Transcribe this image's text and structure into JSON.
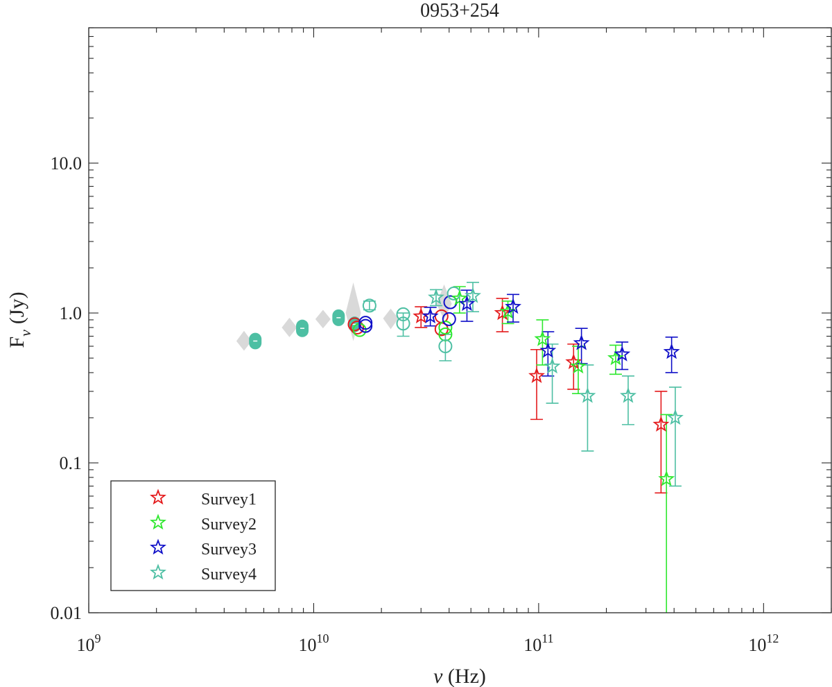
{
  "chart_data": {
    "type": "scatter",
    "title": "0953+254",
    "xlabel_sym": "ν",
    "xlabel_unit": "(Hz)",
    "ylabel_main": "F",
    "ylabel_sub": "ν",
    "ylabel_unit": "(Jy)",
    "xscale": "log",
    "yscale": "log",
    "xlim": [
      1000000000.0,
      2000000000000.0
    ],
    "ylim": [
      0.01,
      80
    ],
    "x_ticks": [
      {
        "value": 1000000000.0,
        "base": "10",
        "exp": "9"
      },
      {
        "value": 10000000000.0,
        "base": "10",
        "exp": "10"
      },
      {
        "value": 100000000000.0,
        "base": "10",
        "exp": "11"
      },
      {
        "value": 1000000000000.0,
        "base": "10",
        "exp": "12"
      }
    ],
    "y_ticks": [
      {
        "value": 0.01,
        "label": "0.01"
      },
      {
        "value": 0.1,
        "label": "0.1"
      },
      {
        "value": 1,
        "label": "1.0"
      },
      {
        "value": 10,
        "label": "10.0"
      }
    ],
    "legend_position": "bottom-left",
    "colors": {
      "Survey1": "#e41a1c",
      "Survey2": "#2ee82e",
      "Survey3": "#1010c8",
      "Survey4": "#4dbfa3",
      "grey": "#d9d9d9",
      "teal_fill": "#4dbfa3"
    },
    "series": [
      {
        "name": "Survey1",
        "marker": "star",
        "points": [
          {
            "x": 30000000000.0,
            "y": 0.95,
            "lo": 0.8,
            "hi": 1.1
          },
          {
            "x": 69000000000.0,
            "y": 1.0,
            "lo": 0.75,
            "hi": 1.25
          },
          {
            "x": 98000000000.0,
            "y": 0.38,
            "lo": 0.195,
            "hi": 0.57
          },
          {
            "x": 143000000000.0,
            "y": 0.47,
            "lo": 0.31,
            "hi": 0.62
          },
          {
            "x": 350000000000.0,
            "y": 0.18,
            "lo": 0.063,
            "hi": 0.3
          }
        ]
      },
      {
        "name": "Survey2",
        "marker": "star",
        "points": [
          {
            "x": 44500000000.0,
            "y": 1.25,
            "lo": 1.0,
            "hi": 1.5
          },
          {
            "x": 73000000000.0,
            "y": 1.02,
            "lo": 0.85,
            "hi": 1.2
          },
          {
            "x": 104000000000.0,
            "y": 0.67,
            "lo": 0.45,
            "hi": 0.9
          },
          {
            "x": 150000000000.0,
            "y": 0.44,
            "lo": 0.29,
            "hi": 0.6
          },
          {
            "x": 220000000000.0,
            "y": 0.5,
            "lo": 0.39,
            "hi": 0.61
          },
          {
            "x": 370000000000.0,
            "y": 0.078,
            "lo": 0.008,
            "hi": 0.21
          }
        ]
      },
      {
        "name": "Survey3",
        "marker": "star",
        "points": [
          {
            "x": 33000000000.0,
            "y": 0.95,
            "lo": 0.82,
            "hi": 1.09
          },
          {
            "x": 48000000000.0,
            "y": 1.15,
            "lo": 0.88,
            "hi": 1.42
          },
          {
            "x": 77000000000.0,
            "y": 1.1,
            "lo": 0.87,
            "hi": 1.33
          },
          {
            "x": 110000000000.0,
            "y": 0.56,
            "lo": 0.38,
            "hi": 0.75
          },
          {
            "x": 155000000000.0,
            "y": 0.63,
            "lo": 0.46,
            "hi": 0.79
          },
          {
            "x": 235000000000.0,
            "y": 0.53,
            "lo": 0.42,
            "hi": 0.64
          },
          {
            "x": 390000000000.0,
            "y": 0.55,
            "lo": 0.4,
            "hi": 0.69
          }
        ]
      },
      {
        "name": "Survey4",
        "marker": "star",
        "points": [
          {
            "x": 35000000000.0,
            "y": 1.27,
            "lo": 1.12,
            "hi": 1.43
          },
          {
            "x": 51000000000.0,
            "y": 1.3,
            "lo": 1.02,
            "hi": 1.6
          },
          {
            "x": 115000000000.0,
            "y": 0.44,
            "lo": 0.25,
            "hi": 0.62
          },
          {
            "x": 165000000000.0,
            "y": 0.28,
            "lo": 0.12,
            "hi": 0.45
          },
          {
            "x": 250000000000.0,
            "y": 0.28,
            "lo": 0.18,
            "hi": 0.38
          },
          {
            "x": 405000000000.0,
            "y": 0.2,
            "lo": 0.07,
            "hi": 0.32
          }
        ]
      }
    ],
    "circle_points": [
      {
        "color": "Survey1",
        "x": 15200000000.0,
        "y": 0.84
      },
      {
        "color": "Survey1",
        "x": 15600000000.0,
        "y": 0.8
      },
      {
        "color": "Survey1",
        "x": 37000000000.0,
        "y": 0.78
      },
      {
        "color": "Survey1",
        "x": 37000000000.0,
        "y": 0.95
      },
      {
        "color": "Survey2",
        "x": 16000000000.0,
        "y": 0.77
      },
      {
        "color": "Survey2",
        "x": 38500000000.0,
        "y": 0.8
      },
      {
        "color": "Survey2",
        "x": 38500000000.0,
        "y": 0.72
      },
      {
        "color": "Survey3",
        "x": 17000000000.0,
        "y": 0.82
      },
      {
        "color": "Survey3",
        "x": 17000000000.0,
        "y": 0.86
      },
      {
        "color": "Survey3",
        "x": 40500000000.0,
        "y": 1.18
      },
      {
        "color": "Survey3",
        "x": 40000000000.0,
        "y": 0.91
      },
      {
        "color": "Survey4",
        "x": 17700000000.0,
        "y": 1.12,
        "lo": 1.05,
        "hi": 1.2
      },
      {
        "color": "Survey4",
        "x": 25000000000.0,
        "y": 0.85,
        "lo": 0.7,
        "hi": 1.0
      },
      {
        "color": "Survey4",
        "x": 25000000000.0,
        "y": 0.98
      },
      {
        "color": "Survey4",
        "x": 38500000000.0,
        "y": 0.6,
        "lo": 0.48,
        "hi": 0.72
      },
      {
        "color": "Survey4",
        "x": 42000000000.0,
        "y": 1.35
      }
    ],
    "filled_points": [
      {
        "x": 5500000000.0,
        "y": 0.65,
        "ylo": 0.63,
        "yhi": 0.67
      },
      {
        "x": 8900000000.0,
        "y": 0.79,
        "ylo": 0.76,
        "yhi": 0.82
      },
      {
        "x": 12900000000.0,
        "y": 0.93,
        "ylo": 0.9,
        "yhi": 0.96
      },
      {
        "x": 15200000000.0,
        "y": 0.84,
        "ylo": 0.82,
        "yhi": 0.86
      }
    ],
    "grey_diamonds": [
      {
        "x": 4900000000.0,
        "y": 0.65,
        "ylo": 0.56,
        "yhi": 0.76
      },
      {
        "x": 7800000000.0,
        "y": 0.8,
        "ylo": 0.69,
        "yhi": 0.93
      },
      {
        "x": 11000000000.0,
        "y": 0.91,
        "ylo": 0.79,
        "yhi": 1.05
      },
      {
        "x": 15000000000.0,
        "y": 1.0,
        "ylo": 0.65,
        "yhi": 1.6
      },
      {
        "x": 22000000000.0,
        "y": 0.92,
        "ylo": 0.78,
        "yhi": 1.07
      },
      {
        "x": 38000000000.0,
        "y": 1.15,
        "ylo": 0.9,
        "yhi": 1.55
      }
    ]
  }
}
